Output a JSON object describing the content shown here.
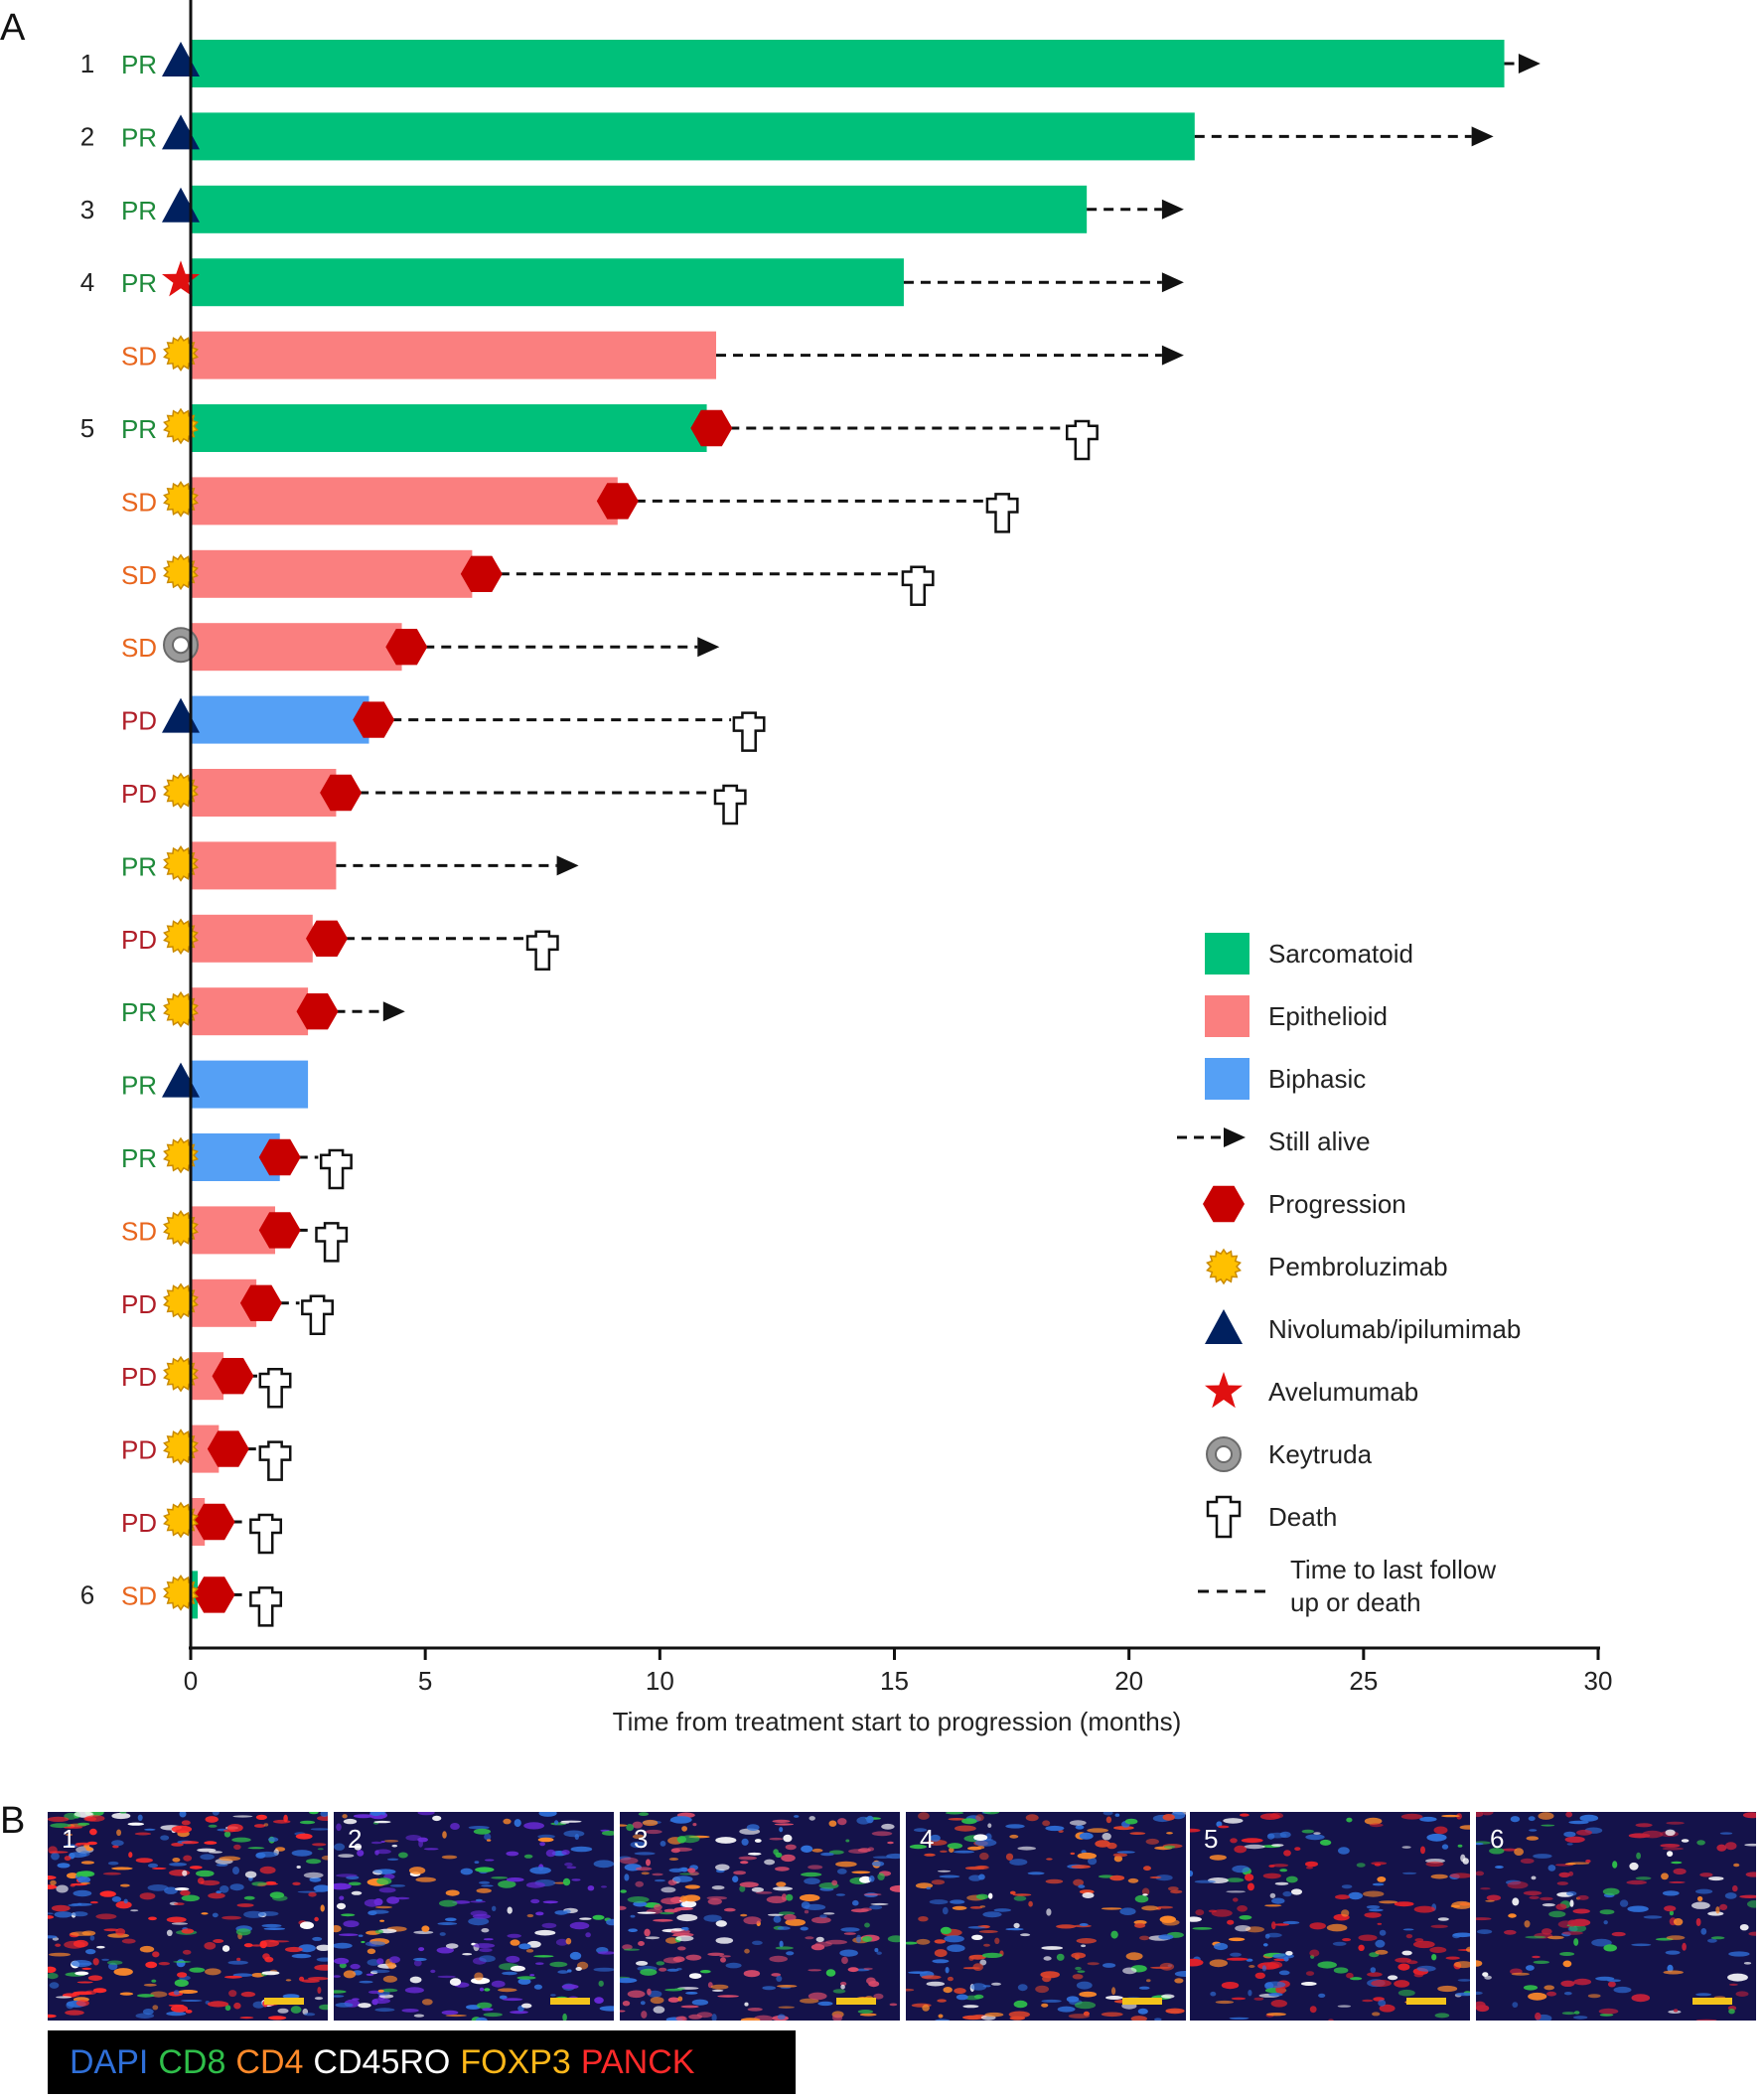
{
  "panel_a_label": "A",
  "panel_b_label": "B",
  "chart_data": {
    "type": "swimmer",
    "xlabel": "Time from treatment start to progression (months)",
    "xlim": [
      0,
      30
    ],
    "xticks": [
      0,
      5,
      10,
      15,
      20,
      25,
      30
    ],
    "grid": false,
    "legend_position": "right",
    "colors": {
      "Sarcomatoid": "#00c07a",
      "Epithelioid": "#fa7f7f",
      "Biphasic": "#55a0f5",
      "Progression": "#c80000",
      "Pembrolizumab": "#ffc000",
      "Nivolumab/ipilumimab": "#00205f",
      "Avelumumab": "#e01010",
      "Keytruda": "#9a9a9a",
      "response_PR": "#1e8a3a",
      "response_SD": "#e8661e",
      "response_PD": "#b01e28"
    },
    "patients": [
      {
        "id": "1",
        "response": "PR",
        "histology": "Sarcomatoid",
        "treatment": "Nivolumab/ipilumimab",
        "bar_end": 28.0,
        "progression": null,
        "followup": 28.6,
        "outcome": "alive"
      },
      {
        "id": "2",
        "response": "PR",
        "histology": "Sarcomatoid",
        "treatment": "Nivolumab/ipilumimab",
        "bar_end": 21.4,
        "progression": null,
        "followup": 27.6,
        "outcome": "alive"
      },
      {
        "id": "3",
        "response": "PR",
        "histology": "Sarcomatoid",
        "treatment": "Nivolumab/ipilumimab",
        "bar_end": 19.1,
        "progression": null,
        "followup": 21.0,
        "outcome": "alive"
      },
      {
        "id": "4",
        "response": "PR",
        "histology": "Sarcomatoid",
        "treatment": "Avelumumab",
        "bar_end": 15.2,
        "progression": null,
        "followup": 21.0,
        "outcome": "alive"
      },
      {
        "id": "",
        "response": "SD",
        "histology": "Epithelioid",
        "treatment": "Pembrolizumab",
        "bar_end": 11.2,
        "progression": null,
        "followup": 21.0,
        "outcome": "alive"
      },
      {
        "id": "5",
        "response": "PR",
        "histology": "Sarcomatoid",
        "treatment": "Pembrolizumab",
        "bar_end": 11.0,
        "progression": 11.1,
        "followup": 19.0,
        "outcome": "death"
      },
      {
        "id": "",
        "response": "SD",
        "histology": "Epithelioid",
        "treatment": "Pembrolizumab",
        "bar_end": 9.1,
        "progression": 9.1,
        "followup": 17.3,
        "outcome": "death"
      },
      {
        "id": "",
        "response": "SD",
        "histology": "Epithelioid",
        "treatment": "Pembrolizumab",
        "bar_end": 6.0,
        "progression": 6.2,
        "followup": 15.5,
        "outcome": "death"
      },
      {
        "id": "",
        "response": "SD",
        "histology": "Epithelioid",
        "treatment": "Keytruda",
        "bar_end": 4.5,
        "progression": 4.6,
        "followup": 11.1,
        "outcome": "alive"
      },
      {
        "id": "",
        "response": "PD",
        "histology": "Biphasic",
        "treatment": "Nivolumab/ipilumimab",
        "bar_end": 3.8,
        "progression": 3.9,
        "followup": 11.9,
        "outcome": "death"
      },
      {
        "id": "",
        "response": "PD",
        "histology": "Epithelioid",
        "treatment": "Pembrolizumab",
        "bar_end": 3.1,
        "progression": 3.2,
        "followup": 11.5,
        "outcome": "death"
      },
      {
        "id": "",
        "response": "PR",
        "histology": "Epithelioid",
        "treatment": "Pembrolizumab",
        "bar_end": 3.1,
        "progression": null,
        "followup": 8.1,
        "outcome": "alive"
      },
      {
        "id": "",
        "response": "PD",
        "histology": "Epithelioid",
        "treatment": "Pembrolizumab",
        "bar_end": 2.6,
        "progression": 2.9,
        "followup": 7.5,
        "outcome": "death"
      },
      {
        "id": "",
        "response": "PR",
        "histology": "Epithelioid",
        "treatment": "Pembrolizumab",
        "bar_end": 2.5,
        "progression": 2.7,
        "followup": 4.4,
        "outcome": "alive"
      },
      {
        "id": "",
        "response": "PR",
        "histology": "Biphasic",
        "treatment": "Nivolumab/ipilumimab",
        "bar_end": 2.5,
        "progression": null,
        "followup": null,
        "outcome": "none"
      },
      {
        "id": "",
        "response": "PR",
        "histology": "Biphasic",
        "treatment": "Pembrolizumab",
        "bar_end": 1.9,
        "progression": 1.9,
        "followup": 3.1,
        "outcome": "death"
      },
      {
        "id": "",
        "response": "SD",
        "histology": "Epithelioid",
        "treatment": "Pembrolizumab",
        "bar_end": 1.8,
        "progression": 1.9,
        "followup": 3.0,
        "outcome": "death"
      },
      {
        "id": "",
        "response": "PD",
        "histology": "Epithelioid",
        "treatment": "Pembrolizumab",
        "bar_end": 1.4,
        "progression": 1.5,
        "followup": 2.7,
        "outcome": "death"
      },
      {
        "id": "",
        "response": "PD",
        "histology": "Epithelioid",
        "treatment": "Pembrolizumab",
        "bar_end": 0.7,
        "progression": 0.9,
        "followup": 1.8,
        "outcome": "death"
      },
      {
        "id": "",
        "response": "PD",
        "histology": "Epithelioid",
        "treatment": "Pembrolizumab",
        "bar_end": 0.6,
        "progression": 0.8,
        "followup": 1.8,
        "outcome": "death"
      },
      {
        "id": "",
        "response": "PD",
        "histology": "Epithelioid",
        "treatment": "Pembrolizumab",
        "bar_end": 0.3,
        "progression": 0.5,
        "followup": 1.6,
        "outcome": "death"
      },
      {
        "id": "6",
        "response": "SD",
        "histology": "Sarcomatoid",
        "treatment": "Pembrolizumab",
        "bar_end": 0.15,
        "progression": 0.5,
        "followup": 1.6,
        "outcome": "death"
      }
    ],
    "legend": [
      {
        "key": "Sarcomatoid",
        "label": "Sarcomatoid",
        "symbol": "box"
      },
      {
        "key": "Epithelioid",
        "label": "Epithelioid",
        "symbol": "box"
      },
      {
        "key": "Biphasic",
        "label": "Biphasic",
        "symbol": "box"
      },
      {
        "key": "alive",
        "label": "Still alive",
        "symbol": "arrow"
      },
      {
        "key": "Progression",
        "label": "Progression",
        "symbol": "hexagon"
      },
      {
        "key": "Pembrolizumab",
        "label": "Pembroluzimab",
        "symbol": "sun"
      },
      {
        "key": "Nivolumab/ipilumimab",
        "label": "Nivolumab/ipilumimab",
        "symbol": "triangle"
      },
      {
        "key": "Avelumumab",
        "label": "Avelumumab",
        "symbol": "star"
      },
      {
        "key": "Keytruda",
        "label": "Keytruda",
        "symbol": "ring"
      },
      {
        "key": "death",
        "label": "Death",
        "symbol": "cross"
      },
      {
        "key": "dash",
        "label": "Time to last follow up or death",
        "label_lines": [
          "Time to last follow",
          "up or death"
        ],
        "symbol": "dash"
      }
    ]
  },
  "panel_b": {
    "tiles": [
      {
        "number": "1",
        "tint": "#ff2a2a",
        "density": 0.9
      },
      {
        "number": "2",
        "tint": "#6a2ad8",
        "density": 0.7
      },
      {
        "number": "3",
        "tint": "#d84a6a",
        "density": 0.8
      },
      {
        "number": "4",
        "tint": "#e0442a",
        "density": 0.6
      },
      {
        "number": "5",
        "tint": "#e0202a",
        "density": 0.5
      },
      {
        "number": "6",
        "tint": "#c0203a",
        "density": 0.4
      }
    ],
    "stain_legend": [
      {
        "label": "DAPI",
        "color": "#2f6fd8"
      },
      {
        "label": "CD8",
        "color": "#2fbf4a"
      },
      {
        "label": "CD4",
        "color": "#ff8a2a"
      },
      {
        "label": "CD45RO",
        "color": "#ffffff"
      },
      {
        "label": "FOXP3",
        "color": "#ffb81a"
      },
      {
        "label": "PANCK",
        "color": "#ff2a2a"
      }
    ]
  }
}
